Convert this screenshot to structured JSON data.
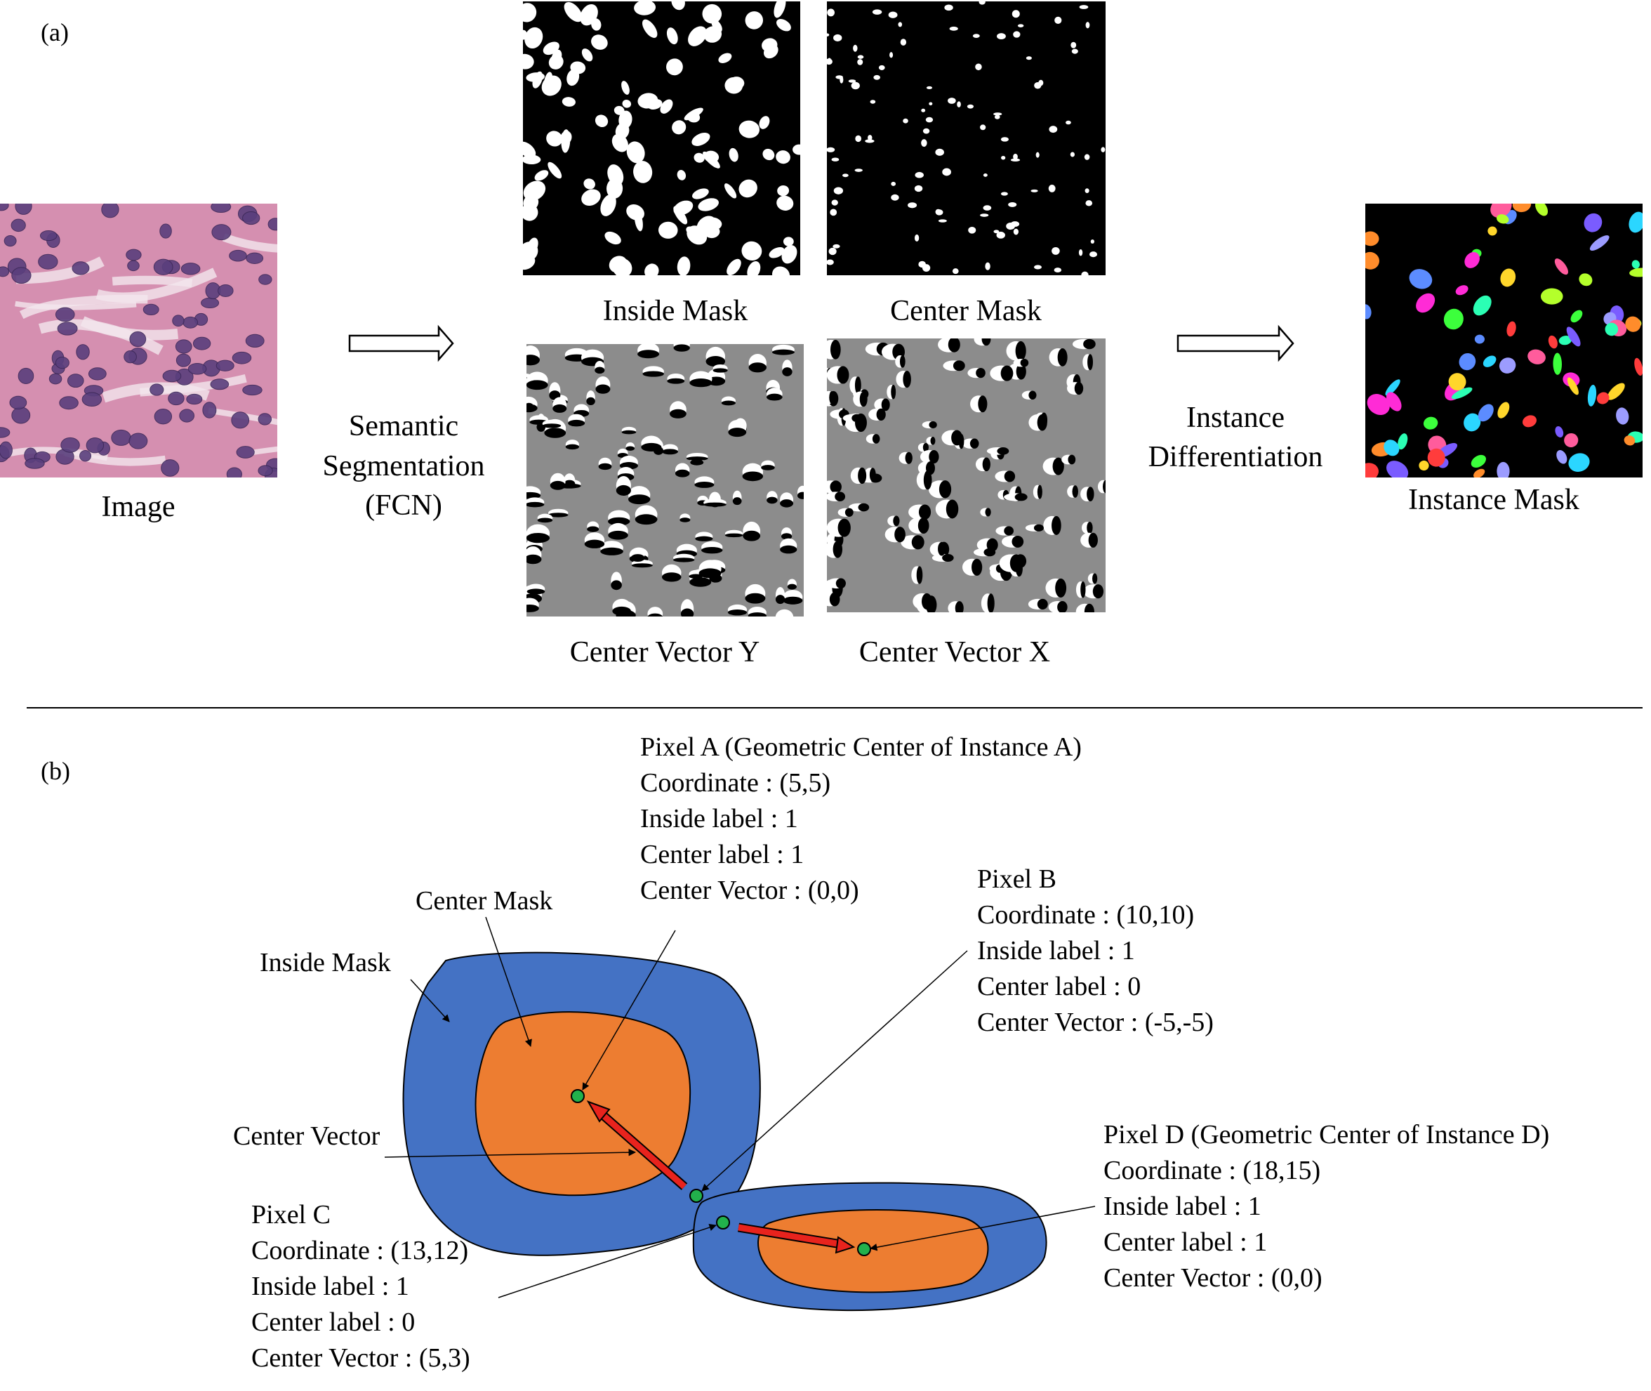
{
  "panel_a": {
    "tag": "(a)",
    "image_label": "Image",
    "semantic_label": [
      "Semantic",
      "Segmentation",
      "(FCN)"
    ],
    "inside_mask_label": "Inside Mask",
    "center_mask_label": "Center Mask",
    "center_vector_y_label": "Center Vector Y",
    "center_vector_x_label": "Center Vector X",
    "instance_diff_label": [
      "Instance",
      "Differentiation"
    ],
    "instance_mask_label": "Instance Mask"
  },
  "panel_b": {
    "tag": "(b)",
    "center_mask_label": "Center Mask",
    "inside_mask_label": "Inside Mask",
    "center_vector_label": "Center Vector",
    "pixel_a": [
      "Pixel A (Geometric Center of Instance A)",
      "Coordinate : (5,5)",
      "Inside label : 1",
      "Center label : 1",
      "Center Vector : (0,0)"
    ],
    "pixel_b": [
      "Pixel B",
      "Coordinate : (10,10)",
      "Inside label : 1",
      "Center label : 0",
      "Center Vector : (-5,-5)"
    ],
    "pixel_c": [
      "Pixel C",
      "Coordinate : (13,12)",
      "Inside label : 1",
      "Center label : 0",
      "Center Vector : (5,3)"
    ],
    "pixel_d": [
      "Pixel D (Geometric Center of Instance D)",
      "Coordinate : (18,15)",
      "Inside label : 1",
      "Center label : 1",
      "Center Vector : (0,0)"
    ]
  },
  "colors": {
    "inside": "#4472c4",
    "center": "#ed7d31",
    "vector": "#e8231d",
    "point": "#22b14c",
    "gray": "#8c8c8c",
    "tissue": "#d58fb0",
    "nucleus": "#5a3f7d"
  }
}
